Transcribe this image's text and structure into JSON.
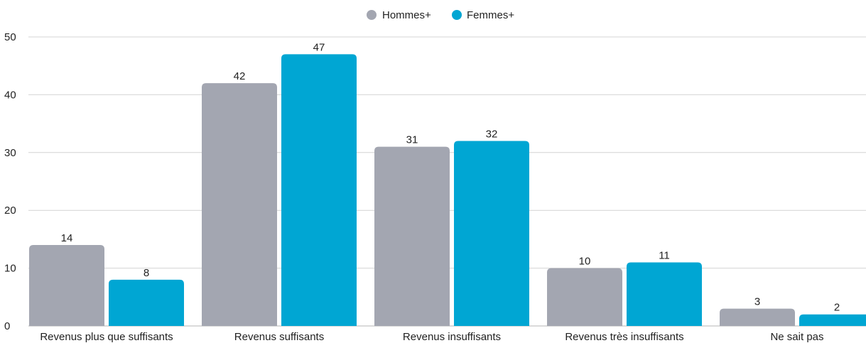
{
  "chart_data": {
    "type": "bar",
    "categories": [
      "Revenus plus que suffisants",
      "Revenus suffisants",
      "Revenus insuffisants",
      "Revenus très insuffisants",
      "Ne sait pas"
    ],
    "series": [
      {
        "name": "Hommes+",
        "color": "#a3a6b1",
        "values": [
          14,
          42,
          31,
          10,
          3
        ]
      },
      {
        "name": "Femmes+",
        "color": "#00a6d3",
        "values": [
          8,
          47,
          32,
          11,
          2
        ]
      }
    ],
    "yticks": [
      0,
      10,
      20,
      30,
      40,
      50
    ],
    "ylim": [
      0,
      50
    ],
    "grid": true,
    "legend_position": "top-center",
    "data_labels": true
  }
}
